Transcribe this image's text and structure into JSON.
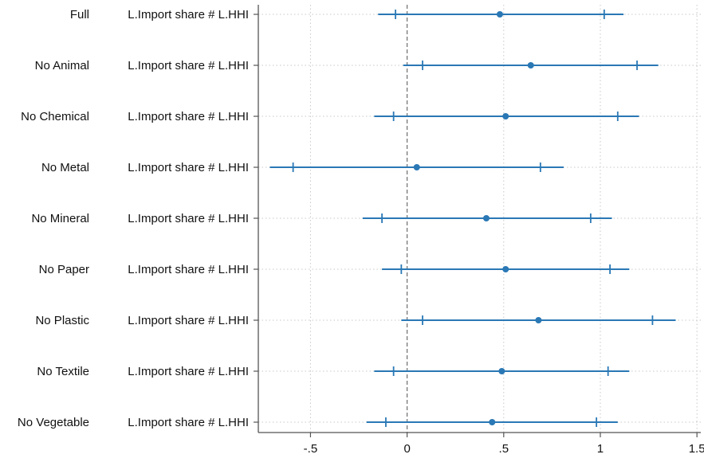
{
  "chart_data": {
    "type": "scatter",
    "subtype": "coefficient-plot",
    "title": "",
    "xlabel": "",
    "ylabel": "",
    "xlim": [
      -0.77,
      1.52
    ],
    "x_ticks": [
      {
        "value": -0.5,
        "label": "-.5"
      },
      {
        "value": 0,
        "label": "0"
      },
      {
        "value": 0.5,
        "label": ".5"
      },
      {
        "value": 1,
        "label": "1"
      },
      {
        "value": 1.5,
        "label": "1.5"
      }
    ],
    "reference_line": {
      "value": 0,
      "style": "dashed"
    },
    "grid": true,
    "colors": {
      "series": "#2a78b5",
      "reference": "#777777",
      "axis": "#555555",
      "grid": "#c8c8c8"
    },
    "groups": [
      {
        "group": "Full",
        "coefficient": "L.Import share # L.HHI",
        "estimate": 0.48,
        "ci90": [
          -0.06,
          1.02
        ],
        "ci95": [
          -0.15,
          1.12
        ]
      },
      {
        "group": "No Animal",
        "coefficient": "L.Import share # L.HHI",
        "estimate": 0.64,
        "ci90": [
          0.08,
          1.19
        ],
        "ci95": [
          -0.02,
          1.3
        ]
      },
      {
        "group": "No Chemical",
        "coefficient": "L.Import share # L.HHI",
        "estimate": 0.51,
        "ci90": [
          -0.07,
          1.09
        ],
        "ci95": [
          -0.17,
          1.2
        ]
      },
      {
        "group": "No Metal",
        "coefficient": "L.Import share # L.HHI",
        "estimate": 0.05,
        "ci90": [
          -0.59,
          0.69
        ],
        "ci95": [
          -0.71,
          0.81
        ]
      },
      {
        "group": "No Mineral",
        "coefficient": "L.Import share # L.HHI",
        "estimate": 0.41,
        "ci90": [
          -0.13,
          0.95
        ],
        "ci95": [
          -0.23,
          1.06
        ]
      },
      {
        "group": "No Paper",
        "coefficient": "L.Import share # L.HHI",
        "estimate": 0.51,
        "ci90": [
          -0.03,
          1.05
        ],
        "ci95": [
          -0.13,
          1.15
        ]
      },
      {
        "group": "No Plastic",
        "coefficient": "L.Import share # L.HHI",
        "estimate": 0.68,
        "ci90": [
          0.08,
          1.27
        ],
        "ci95": [
          -0.03,
          1.39
        ]
      },
      {
        "group": "No Textile",
        "coefficient": "L.Import share # L.HHI",
        "estimate": 0.49,
        "ci90": [
          -0.07,
          1.04
        ],
        "ci95": [
          -0.17,
          1.15
        ]
      },
      {
        "group": "No Vegetable",
        "coefficient": "L.Import share # L.HHI",
        "estimate": 0.44,
        "ci90": [
          -0.11,
          0.98
        ],
        "ci95": [
          -0.21,
          1.09
        ]
      }
    ]
  }
}
